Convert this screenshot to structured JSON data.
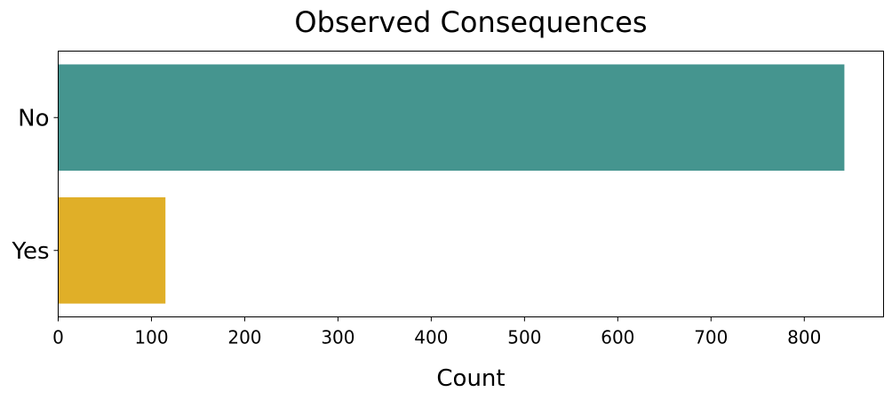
{
  "chart_data": {
    "type": "bar",
    "orientation": "horizontal",
    "title": "Observed Consequences",
    "xlabel": "Count",
    "ylabel": "",
    "categories": [
      "No",
      "Yes"
    ],
    "values": [
      843,
      115
    ],
    "colors": [
      "#45958F",
      "#E0AF28"
    ],
    "xlim": [
      0,
      885
    ],
    "xticks": [
      0,
      100,
      200,
      300,
      400,
      500,
      600,
      700,
      800
    ],
    "grid": false,
    "legend": false
  }
}
